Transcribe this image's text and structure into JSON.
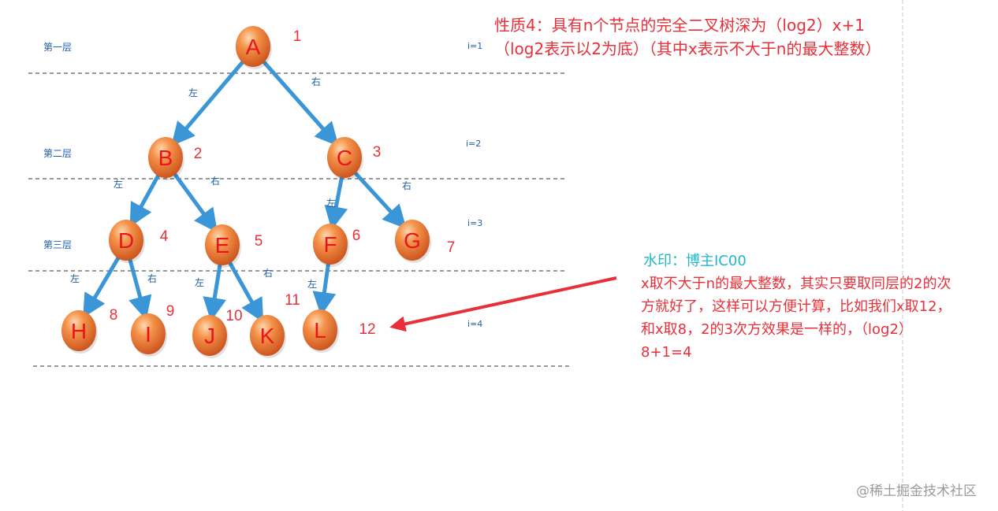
{
  "property": {
    "line1": "性质4：具有n个节点的完全二叉树深为（log2）x+1",
    "line2": "（log2表示以2为底）（其中x表示不大于n的最大整数）"
  },
  "levels": [
    {
      "name": "第一层",
      "index": "i=1"
    },
    {
      "name": "第二层",
      "index": "i=2"
    },
    {
      "name": "第三层",
      "index": "i=3"
    },
    {
      "name": "",
      "index": "i=4"
    }
  ],
  "nodes": [
    {
      "id": "A",
      "label": "A",
      "number": "1"
    },
    {
      "id": "B",
      "label": "B",
      "number": "2"
    },
    {
      "id": "C",
      "label": "C",
      "number": "3"
    },
    {
      "id": "D",
      "label": "D",
      "number": "4"
    },
    {
      "id": "E",
      "label": "E",
      "number": "5"
    },
    {
      "id": "F",
      "label": "F",
      "number": "6"
    },
    {
      "id": "G",
      "label": "G",
      "number": "7"
    },
    {
      "id": "H",
      "label": "H",
      "number": "8"
    },
    {
      "id": "I",
      "label": "I",
      "number": "9"
    },
    {
      "id": "J",
      "label": "J",
      "number": "10"
    },
    {
      "id": "K",
      "label": "K",
      "number": "11"
    },
    {
      "id": "L",
      "label": "L",
      "number": "12"
    }
  ],
  "edges": [
    {
      "from": "A",
      "to": "B",
      "label": "左"
    },
    {
      "from": "A",
      "to": "C",
      "label": "右"
    },
    {
      "from": "B",
      "to": "D",
      "label": "左"
    },
    {
      "from": "B",
      "to": "E",
      "label": "右"
    },
    {
      "from": "C",
      "to": "F",
      "label": "左"
    },
    {
      "from": "C",
      "to": "G",
      "label": "右"
    },
    {
      "from": "D",
      "to": "H",
      "label": "左"
    },
    {
      "from": "D",
      "to": "I",
      "label": "右"
    },
    {
      "from": "E",
      "to": "J",
      "label": "左"
    },
    {
      "from": "E",
      "to": "K",
      "label": "右"
    },
    {
      "from": "F",
      "to": "L",
      "label": "左"
    }
  ],
  "watermark": {
    "label": "水印：博主IC00"
  },
  "note": {
    "lines": [
      "x取不大于n的最大整数，其实只要取同层的2的次",
      "方就好了，这样可以方便计算，比如我们x取12，",
      "和x取8，2的3次方效果是一样的，（log2）",
      "8+1=4"
    ]
  },
  "site_mark": "@稀土掘金技术社区",
  "colors": {
    "node_fill": "#f07a2c",
    "node_dark": "#c9501a",
    "edge": "#3a96d6",
    "red_text": "#e8303a",
    "guide_text": "#1f5fa8",
    "watermark": "#20b8c8"
  }
}
